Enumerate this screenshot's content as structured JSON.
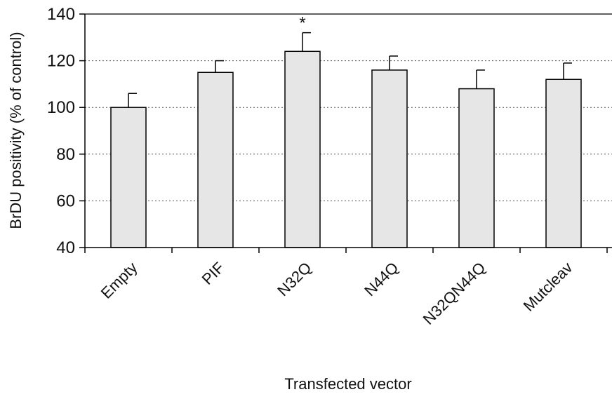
{
  "chart_data": {
    "type": "bar",
    "title": "",
    "xlabel": "Transfected vector",
    "ylabel": "BrDU positivity (% of control)",
    "categories": [
      "Empty",
      "PIF",
      "N32Q",
      "N44Q",
      "N32QN44Q",
      "Mutcleav"
    ],
    "values": [
      100,
      115,
      124,
      116,
      108,
      112
    ],
    "error_upper": [
      6,
      5,
      8,
      6,
      8,
      7
    ],
    "annotations": [
      "",
      "",
      "*",
      "",
      "",
      ""
    ],
    "ylim": [
      40,
      140
    ],
    "yticks": [
      40,
      60,
      80,
      100,
      120,
      140
    ],
    "grid": true,
    "bar_color": "#e6e6e6",
    "bar_edge_color": "#000000",
    "grid_color": "#555555"
  }
}
